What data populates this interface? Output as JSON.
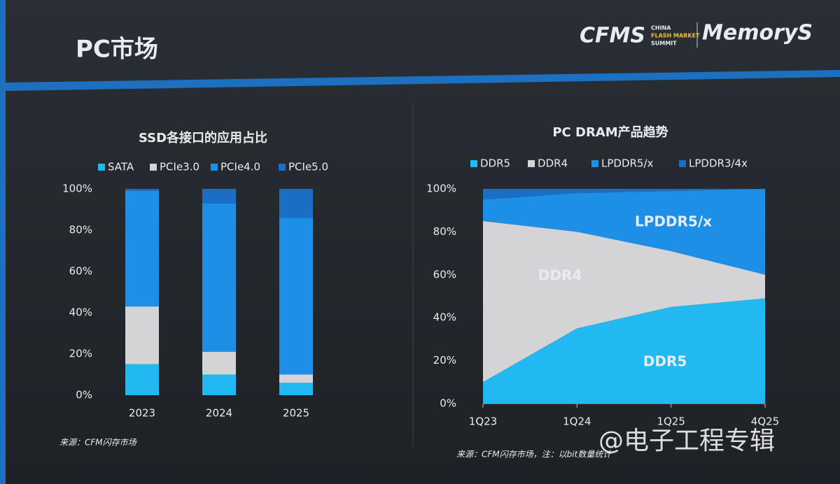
{
  "header": {
    "title": "PC市场",
    "logo": {
      "mark": "CFMS",
      "lines": [
        "CHINA",
        "FLASH MARKET",
        "SUMMIT"
      ],
      "brand": "MemoryS"
    }
  },
  "chart_data": [
    {
      "type": "bar",
      "stacked": true,
      "title": "SSD各接口的应用占比",
      "legend": "top",
      "grid": false,
      "categories": [
        "2023",
        "2024",
        "2025"
      ],
      "series": [
        {
          "name": "SATA",
          "color": "#22b8f2",
          "values": [
            15,
            10,
            6
          ]
        },
        {
          "name": "PCIe3.0",
          "color": "#d4d4d6",
          "values": [
            28,
            11,
            4
          ]
        },
        {
          "name": "PCIe4.0",
          "color": "#1d8fe6",
          "values": [
            56,
            72,
            76
          ]
        },
        {
          "name": "PCIe5.0",
          "color": "#1a6fc4",
          "values": [
            1,
            7,
            14
          ]
        }
      ],
      "ylim": [
        0,
        100
      ],
      "yticks": [
        {
          "value": 0,
          "label": "0%"
        },
        {
          "value": 20,
          "label": "20%"
        },
        {
          "value": 40,
          "label": "40%"
        },
        {
          "value": 60,
          "label": "60%"
        },
        {
          "value": 80,
          "label": "80%"
        },
        {
          "value": 100,
          "label": "100%"
        }
      ],
      "source": "来源：CFM闪存市场"
    },
    {
      "type": "area",
      "stacked": true,
      "title": "PC DRAM产品趋势",
      "legend": "top",
      "grid": false,
      "categories": [
        "1Q23",
        "1Q24",
        "1Q25",
        "4Q25"
      ],
      "series": [
        {
          "name": "DDR5",
          "color": "#22b8f2",
          "values": [
            10,
            35,
            45,
            49
          ]
        },
        {
          "name": "DDR4",
          "color": "#d4d4d6",
          "values": [
            75,
            45,
            26,
            11
          ]
        },
        {
          "name": "LPDDR5/x",
          "color": "#1d8fe6",
          "values": [
            10,
            18,
            28,
            40
          ]
        },
        {
          "name": "LPDDR3/4x",
          "color": "#1a6fc4",
          "values": [
            5,
            2,
            1,
            0
          ]
        }
      ],
      "ylim": [
        0,
        100
      ],
      "yticks": [
        {
          "value": 0,
          "label": "0%"
        },
        {
          "value": 20,
          "label": "20%"
        },
        {
          "value": 40,
          "label": "40%"
        },
        {
          "value": 60,
          "label": "60%"
        },
        {
          "value": 80,
          "label": "80%"
        },
        {
          "value": 100,
          "label": "100%"
        }
      ],
      "source": "来源：CFM闪存市场，注：以bit数量统计"
    }
  ],
  "watermark": "@电子工程专辑"
}
